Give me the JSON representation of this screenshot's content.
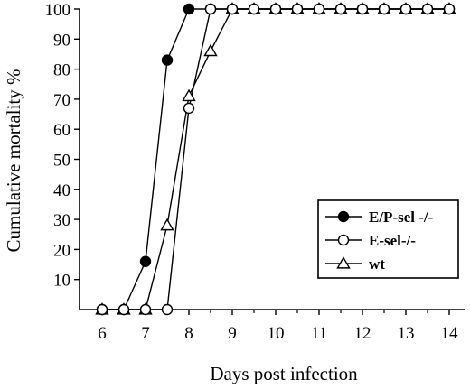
{
  "chart_data": {
    "type": "line",
    "title": "",
    "xlabel": "Days post infection",
    "ylabel": "Cumulative mortality %",
    "xlim": [
      6,
      14
    ],
    "ylim": [
      0,
      100
    ],
    "xticks": [
      "6",
      "7",
      "8",
      "9",
      "10",
      "11",
      "12",
      "13",
      "14"
    ],
    "yticks": [
      "10",
      "20",
      "30",
      "40",
      "50",
      "60",
      "70",
      "80",
      "90",
      "100"
    ],
    "grid": false,
    "legend_position": "center-right",
    "series": [
      {
        "name": "E/P-sel -/-",
        "marker": "filled-circle",
        "x": [
          6,
          6.5,
          7,
          7.5,
          8,
          8.5,
          9,
          9.5,
          10,
          10.5,
          11,
          11.5,
          12,
          12.5,
          13,
          13.5,
          14
        ],
        "y": [
          0,
          0,
          16,
          83,
          100,
          100,
          100,
          100,
          100,
          100,
          100,
          100,
          100,
          100,
          100,
          100,
          100
        ]
      },
      {
        "name": "E-sel-/-",
        "marker": "open-circle",
        "x": [
          6,
          6.5,
          7,
          7.5,
          8,
          8.5,
          9,
          9.5,
          10,
          10.5,
          11,
          11.5,
          12,
          12.5,
          13,
          13.5,
          14
        ],
        "y": [
          0,
          0,
          0,
          0,
          67,
          100,
          100,
          100,
          100,
          100,
          100,
          100,
          100,
          100,
          100,
          100,
          100
        ]
      },
      {
        "name": "wt",
        "marker": "open-triangle",
        "x": [
          6,
          6.5,
          7,
          7.5,
          8,
          8.5,
          9,
          9.5,
          10,
          10.5,
          11,
          11.5,
          12,
          12.5,
          13,
          13.5,
          14
        ],
        "y": [
          0,
          0,
          0,
          28,
          71,
          86,
          100,
          100,
          100,
          100,
          100,
          100,
          100,
          100,
          100,
          100,
          100
        ]
      }
    ]
  }
}
